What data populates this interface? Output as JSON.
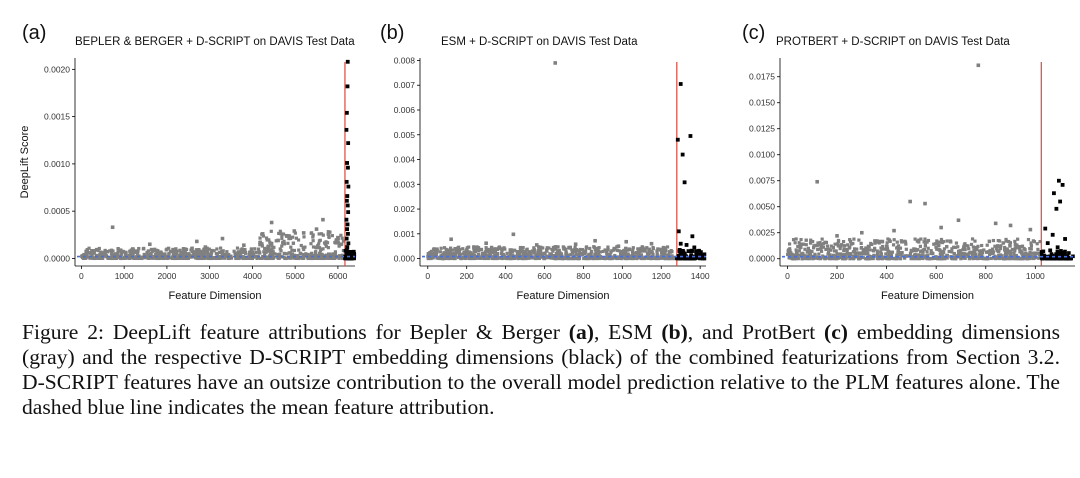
{
  "chart_data": [
    {
      "type": "scatter",
      "panel_label": "(a)",
      "title": "BEPLER & BERGER + D-SCRIPT on DAVIS Test Data",
      "xlabel": "Feature Dimension",
      "ylabel": "DeepLift Score",
      "xlim": [
        -150,
        6400
      ],
      "ylim": [
        -8e-05,
        0.00212
      ],
      "xticks": [
        0,
        1000,
        2000,
        3000,
        4000,
        5000,
        6000
      ],
      "xtick_labels": [
        "0",
        "1000",
        "2000",
        "3000",
        "4000",
        "5000",
        "6000"
      ],
      "yticks": [
        0,
        0.0005,
        0.001,
        0.0015,
        0.002
      ],
      "ytick_labels": [
        "0.0000",
        "0.0005",
        "0.0010",
        "0.0015",
        "0.0020"
      ],
      "split_line_x": 6165,
      "mean_attribution": 2e-05,
      "series": [
        {
          "color": "#808080",
          "points": [
            [
              730,
              0.00033
            ],
            [
              4450,
              0.00038
            ],
            [
              5650,
              0.00041
            ],
            [
              5500,
              0.00031
            ],
            [
              4980,
              0.00029
            ],
            [
              4240,
              0.00026
            ],
            [
              3300,
              0.00021
            ],
            [
              2700,
              0.00018
            ],
            [
              1600,
              0.00015
            ],
            [
              4800,
              0.00024
            ],
            [
              5200,
              0.00027
            ],
            [
              6000,
              0.00022
            ],
            [
              3800,
              0.00014
            ],
            [
              2900,
              0.00012
            ],
            [
              1200,
              0.0001
            ],
            [
              4600,
              0.00019
            ]
          ],
          "bulk": [
            {
              "x_range": [
                0,
                4100
              ],
              "y_max": 0.00011
            },
            {
              "x_range": [
                4100,
                6140
              ],
              "y_max": 0.00029
            }
          ]
        },
        {
          "color": "#000000",
          "points": [
            [
              6230,
              0.00208
            ],
            [
              6225,
              0.00182
            ],
            [
              6210,
              0.00154
            ],
            [
              6200,
              0.00136
            ],
            [
              6240,
              0.00122
            ],
            [
              6215,
              0.00101
            ],
            [
              6235,
              0.00096
            ],
            [
              6205,
              0.00081
            ],
            [
              6245,
              0.00076
            ],
            [
              6220,
              0.00066
            ],
            [
              6210,
              0.00061
            ],
            [
              6230,
              0.00056
            ],
            [
              6240,
              0.00049
            ],
            [
              6200,
              0.00041
            ],
            [
              6225,
              0.00036
            ],
            [
              6215,
              0.00031
            ],
            [
              6235,
              0.00026
            ],
            [
              6205,
              0.00021
            ],
            [
              6245,
              0.00016
            ],
            [
              6220,
              0.00012
            ],
            [
              6210,
              9e-05
            ],
            [
              6230,
              7e-05
            ],
            [
              6240,
              5e-05
            ],
            [
              6200,
              3e-05
            ],
            [
              6250,
              2e-05
            ]
          ]
        }
      ]
    },
    {
      "type": "scatter",
      "panel_label": "(b)",
      "title": "ESM + D-SCRIPT on DAVIS Test Data",
      "xlabel": "Feature Dimension",
      "ylabel": "",
      "xlim": [
        -40,
        1430
      ],
      "ylim": [
        -0.0003,
        0.0081
      ],
      "xticks": [
        0,
        200,
        400,
        600,
        800,
        1000,
        1200,
        1400
      ],
      "xtick_labels": [
        "0",
        "200",
        "400",
        "600",
        "800",
        "1000",
        "1200",
        "1400"
      ],
      "yticks": [
        0,
        0.001,
        0.002,
        0.003,
        0.004,
        0.005,
        0.006,
        0.007,
        0.008
      ],
      "ytick_labels": [
        "0.000",
        "0.001",
        "0.002",
        "0.003",
        "0.004",
        "0.005",
        "0.006",
        "0.007",
        "0.008"
      ],
      "split_line_x": 1280,
      "mean_attribution": 8e-05,
      "series": [
        {
          "color": "#808080",
          "points": [
            [
              655,
              0.0079
            ],
            [
              440,
              0.00098
            ],
            [
              120,
              0.00078
            ],
            [
              860,
              0.00072
            ],
            [
              1020,
              0.00068
            ],
            [
              300,
              0.00062
            ],
            [
              760,
              0.00058
            ],
            [
              1150,
              0.0006
            ],
            [
              560,
              0.00055
            ],
            [
              980,
              0.0005
            ]
          ],
          "bulk": [
            {
              "x_range": [
                0,
                1275
              ],
              "y_max": 0.00048
            }
          ]
        },
        {
          "color": "#000000",
          "points": [
            [
              1300,
              0.00705
            ],
            [
              1350,
              0.00495
            ],
            [
              1285,
              0.0048
            ],
            [
              1310,
              0.0042
            ],
            [
              1320,
              0.00308
            ],
            [
              1290,
              0.0011
            ],
            [
              1360,
              0.0009
            ],
            [
              1300,
              0.0006
            ],
            [
              1330,
              0.00055
            ],
            [
              1370,
              0.00045
            ],
            [
              1295,
              0.00035
            ],
            [
              1340,
              0.0003
            ],
            [
              1380,
              0.0002
            ],
            [
              1310,
              0.00015
            ],
            [
              1355,
              0.0001
            ],
            [
              1390,
              5e-05
            ],
            [
              1285,
              3e-05
            ]
          ]
        }
      ]
    },
    {
      "type": "scatter",
      "panel_label": "(c)",
      "title": "PROTBERT + D-SCRIPT on DAVIS Test Data",
      "xlabel": "Feature Dimension",
      "ylabel": "",
      "xlim": [
        -30,
        1160
      ],
      "ylim": [
        -0.0007,
        0.0193
      ],
      "xticks": [
        0,
        200,
        400,
        600,
        800,
        1000
      ],
      "xtick_labels": [
        "0",
        "200",
        "400",
        "600",
        "800",
        "1000"
      ],
      "yticks": [
        0,
        0.0025,
        0.005,
        0.0075,
        0.01,
        0.0125,
        0.015,
        0.0175
      ],
      "ytick_labels": [
        "0.0000",
        "0.0025",
        "0.0050",
        "0.0075",
        "0.0100",
        "0.0125",
        "0.0150",
        "0.0175"
      ],
      "split_line_x": 1024,
      "mean_attribution": 0.0002,
      "series": [
        {
          "color": "#808080",
          "points": [
            [
              770,
              0.0186
            ],
            [
              120,
              0.0074
            ],
            [
              495,
              0.0055
            ],
            [
              555,
              0.0053
            ],
            [
              430,
              0.0027
            ],
            [
              690,
              0.0037
            ],
            [
              840,
              0.0034
            ],
            [
              980,
              0.0028
            ],
            [
              300,
              0.0025
            ],
            [
              620,
              0.003
            ],
            [
              200,
              0.0022
            ],
            [
              900,
              0.0032
            ]
          ],
          "bulk": [
            {
              "x_range": [
                0,
                1020
              ],
              "y_max": 0.0019
            }
          ]
        },
        {
          "color": "#000000",
          "points": [
            [
              1095,
              0.0075
            ],
            [
              1075,
              0.0063
            ],
            [
              1110,
              0.0071
            ],
            [
              1100,
              0.0055
            ],
            [
              1085,
              0.0048
            ],
            [
              1040,
              0.0029
            ],
            [
              1070,
              0.0023
            ],
            [
              1120,
              0.0019
            ],
            [
              1050,
              0.0015
            ],
            [
              1090,
              0.0011
            ],
            [
              1060,
              0.0008
            ],
            [
              1105,
              0.0005
            ],
            [
              1035,
              0.0003
            ],
            [
              1080,
              0.0001
            ]
          ]
        }
      ]
    }
  ],
  "caption": {
    "figure_label": "Figure 2: ",
    "text1": "DeepLift feature attributions for Bepler & Berger ",
    "bold_a": "(a)",
    "text2": ", ESM ",
    "bold_b": "(b)",
    "text3": ", and ProtBert ",
    "bold_c": "(c)",
    "text4": " embedding dimensions (gray) and the respective D-SCRIPT embedding dimensions (black) of the combined featurizations from Section 3.2.  D-SCRIPT features have an outsize contribution to the overall model prediction relative to the PLM features alone. The dashed blue line indicates the mean feature attribution."
  }
}
